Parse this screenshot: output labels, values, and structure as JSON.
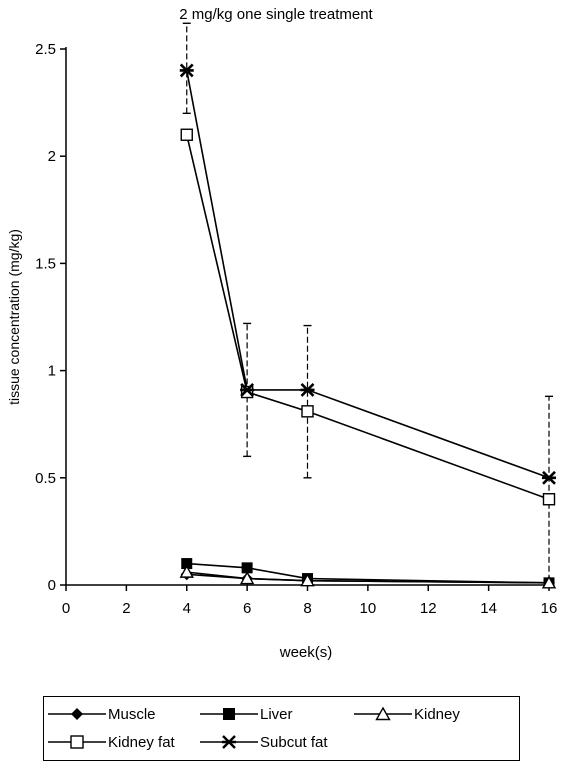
{
  "chart_data": {
    "type": "line",
    "title": "2 mg/kg one single treatment",
    "xlabel": "week(s)",
    "ylabel": "tissue concentration (mg/kg)",
    "xlim": [
      0,
      16
    ],
    "ylim": [
      0,
      2.5
    ],
    "x_ticks": [
      "0",
      "2",
      "4",
      "6",
      "8",
      "10",
      "12",
      "14",
      "16"
    ],
    "y_ticks": [
      "0",
      "0.5",
      "1",
      "1.5",
      "2",
      "2.5"
    ],
    "grid": false,
    "legend_position": "bottom",
    "x": [
      4,
      6,
      8,
      16
    ],
    "series": [
      {
        "name": "Muscle",
        "marker": "diamond-filled",
        "values": [
          0.05,
          0.03,
          0.02,
          0.01
        ]
      },
      {
        "name": "Liver",
        "marker": "square-filled",
        "values": [
          0.1,
          0.08,
          0.03,
          0.01
        ]
      },
      {
        "name": "Kidney",
        "marker": "triangle-open",
        "values": [
          0.06,
          0.03,
          0.02,
          0.01
        ]
      },
      {
        "name": "Kidney fat",
        "marker": "square-open",
        "values": [
          2.1,
          0.9,
          0.81,
          0.4
        ]
      },
      {
        "name": "Subcut fat",
        "marker": "star",
        "values": [
          2.4,
          0.91,
          0.91,
          0.5
        ]
      }
    ],
    "error_bars": [
      {
        "series": "Subcut fat",
        "x": 4,
        "low": 2.2,
        "high": 2.62
      },
      {
        "series": "Kidney fat",
        "x": 6,
        "low": 0.6,
        "high": 1.22
      },
      {
        "series": "Subcut fat",
        "x": 8,
        "low": 0.5,
        "high": 1.21
      },
      {
        "series": "Subcut fat",
        "x": 16,
        "low": 0.02,
        "high": 0.88
      }
    ]
  }
}
